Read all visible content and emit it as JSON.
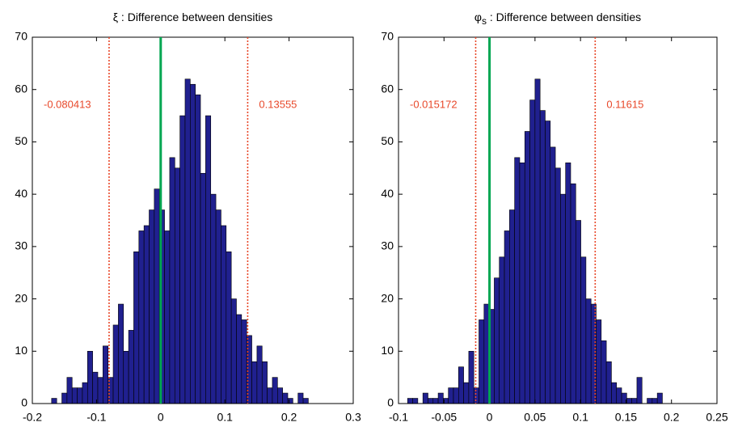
{
  "chart_data": [
    {
      "type": "histogram",
      "title_symbol": "ξ",
      "title": " : Difference between densities",
      "bins": [
        -0.17,
        -0.162,
        -0.154,
        -0.146,
        -0.138,
        -0.13,
        -0.122,
        -0.114,
        -0.106,
        -0.098,
        -0.09,
        -0.082,
        -0.074,
        -0.066,
        -0.058,
        -0.05,
        -0.042,
        -0.034,
        -0.026,
        -0.018,
        -0.01,
        -0.002,
        0.006,
        0.014,
        0.022,
        0.03,
        0.038,
        0.046,
        0.054,
        0.062,
        0.07,
        0.078,
        0.086,
        0.094,
        0.102,
        0.11,
        0.118,
        0.126,
        0.134,
        0.142,
        0.15,
        0.158,
        0.166,
        0.174,
        0.182,
        0.19,
        0.198,
        0.206,
        0.214,
        0.222,
        0.23
      ],
      "values": [
        1,
        0,
        2,
        5,
        3,
        3,
        4,
        10,
        6,
        5,
        11,
        5,
        15,
        19,
        10,
        14,
        29,
        33,
        34,
        37,
        41,
        37,
        33,
        47,
        45,
        55,
        62,
        61,
        59,
        44,
        55,
        40,
        37,
        34,
        29,
        20,
        17,
        16,
        13,
        8,
        11,
        8,
        3,
        5,
        3,
        2,
        1,
        0,
        2,
        1
      ],
      "color": "#20208f",
      "reference_line": 0,
      "reference_color": "#00a651",
      "intervals": [
        -0.080413,
        0.13555
      ],
      "interval_color": "#e8482a",
      "xlim": [
        -0.2,
        0.3
      ],
      "xticks": [
        -0.2,
        -0.1,
        0,
        0.1,
        0.2,
        0.3
      ],
      "ylim": [
        0,
        70
      ],
      "yticks": [
        0,
        10,
        20,
        30,
        40,
        50,
        60,
        70
      ]
    },
    {
      "type": "histogram",
      "title_symbol": "φ",
      "title_subscript": "s",
      "title": " : Difference between densities",
      "bins": [
        -0.09,
        -0.0844,
        -0.0788,
        -0.0732,
        -0.0676,
        -0.062,
        -0.0564,
        -0.0508,
        -0.0452,
        -0.0396,
        -0.034,
        -0.0284,
        -0.0228,
        -0.0172,
        -0.0116,
        -0.006,
        -0.0004,
        0.0052,
        0.0108,
        0.0164,
        0.022,
        0.0276,
        0.0332,
        0.0388,
        0.0444,
        0.05,
        0.0556,
        0.0612,
        0.0668,
        0.0724,
        0.078,
        0.0836,
        0.0892,
        0.0948,
        0.1004,
        0.106,
        0.1116,
        0.1172,
        0.1228,
        0.1284,
        0.134,
        0.1396,
        0.1452,
        0.1508,
        0.1564,
        0.162,
        0.1676,
        0.1732,
        0.1788,
        0.1844,
        0.19
      ],
      "values": [
        1,
        1,
        0,
        2,
        1,
        1,
        2,
        1,
        3,
        3,
        7,
        4,
        10,
        3,
        16,
        19,
        18,
        24,
        28,
        33,
        37,
        47,
        46,
        52,
        58,
        62,
        56,
        54,
        49,
        45,
        40,
        46,
        42,
        35,
        28,
        20,
        19,
        16,
        12,
        8,
        4,
        3,
        2,
        1,
        1,
        5,
        0,
        1,
        1,
        2
      ],
      "color": "#20208f",
      "reference_line": 0,
      "reference_color": "#00a651",
      "intervals": [
        -0.015172,
        0.11615
      ],
      "interval_color": "#e8482a",
      "xlim": [
        -0.1,
        0.25
      ],
      "xticks": [
        -0.1,
        -0.05,
        0,
        0.05,
        0.1,
        0.15,
        0.2,
        0.25
      ],
      "ylim": [
        0,
        70
      ],
      "yticks": [
        0,
        10,
        20,
        30,
        40,
        50,
        60,
        70
      ]
    }
  ]
}
